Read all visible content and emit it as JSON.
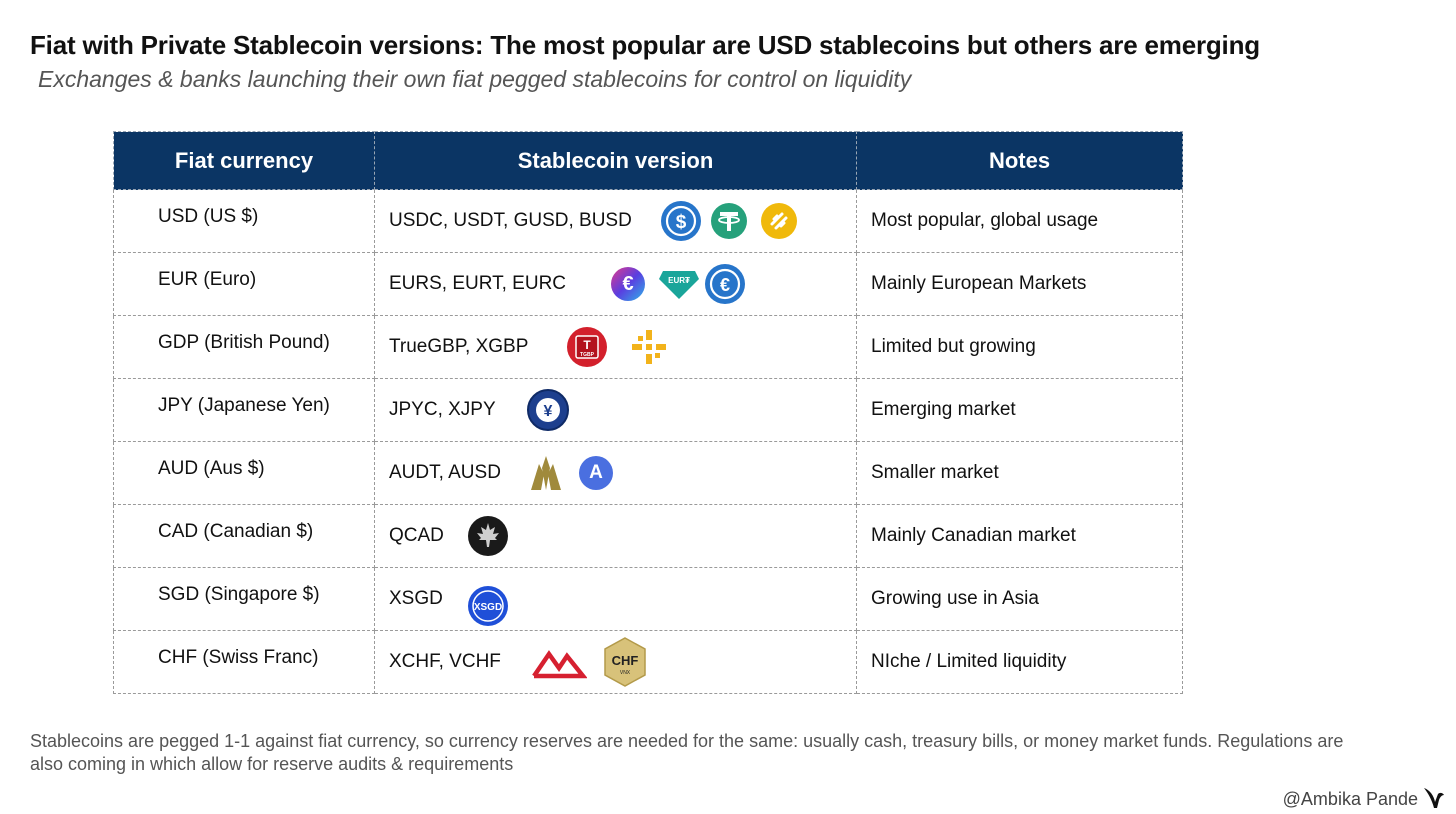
{
  "title": "Fiat with Private Stablecoin versions: The most popular are USD stablecoins but others are emerging",
  "subtitle": "Exchanges & banks launching their own fiat pegged stablecoins for control on liquidity",
  "table": {
    "headers": [
      "Fiat currency",
      "Stablecoin version",
      "Notes"
    ],
    "rows": [
      {
        "fiat": "USD (US $)",
        "coins": "USDC, USDT, GUSD, BUSD",
        "note": "Most popular, global usage"
      },
      {
        "fiat": "EUR (Euro)",
        "coins": "EURS, EURT, EURC",
        "note": "Mainly European Markets"
      },
      {
        "fiat": "GDP (British Pound)",
        "coins": "TrueGBP, XGBP",
        "note": "Limited but growing"
      },
      {
        "fiat": "JPY (Japanese Yen)",
        "coins": "JPYC, XJPY",
        "note": "Emerging market"
      },
      {
        "fiat": "AUD (Aus $)",
        "coins": "AUDT, AUSD",
        "note": "Smaller market"
      },
      {
        "fiat": "CAD (Canadian $)",
        "coins": "QCAD",
        "note": "Mainly Canadian market"
      },
      {
        "fiat": "SGD (Singapore $)",
        "coins": "XSGD",
        "note": "Growing use in Asia"
      },
      {
        "fiat": "CHF (Swiss Franc)",
        "coins": "XCHF, VCHF",
        "note": "NIche / Limited liquidity"
      }
    ]
  },
  "icons": {
    "eurt_text": "EUR₮",
    "tgbp_text": "TGBP",
    "xsgd_text": "XSGD",
    "chf_text": "CHF",
    "vnx_text": "VNX"
  },
  "colors": {
    "header_bg": "#0b3564",
    "usdc": "#2775ca",
    "usdt": "#26a17b",
    "busd": "#f0b90b"
  },
  "footer": "Stablecoins are pegged 1-1 against fiat currency, so currency reserves are needed for the same: usually cash, treasury bills, or money market funds. Regulations are also coming in which allow for reserve audits & requirements",
  "credit": "@Ambika Pande"
}
